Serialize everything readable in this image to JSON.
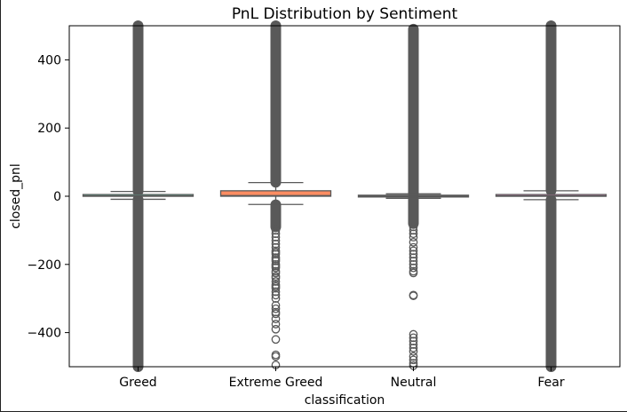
{
  "chart_data": {
    "type": "box",
    "title": "PnL Distribution by Sentiment",
    "xlabel": "classification",
    "ylabel": "closed_pnl",
    "ylim": [
      -500,
      500
    ],
    "yticks": [
      -400,
      -200,
      0,
      200,
      400
    ],
    "ytick_labels": [
      "−400",
      "−200",
      "0",
      "200",
      "400"
    ],
    "grid": false,
    "legend": "none",
    "categories": [
      "Greed",
      "Extreme Greed",
      "Neutral",
      "Fear"
    ],
    "boxes": [
      {
        "name": "Greed",
        "color": "#66c2a5",
        "q1": 0,
        "median": 1,
        "q3": 5,
        "whisker_low": -9,
        "whisker_high": 14,
        "outliers_dense": [
          [
            -500,
            -10
          ],
          [
            15,
            500
          ]
        ],
        "outliers_sparse": []
      },
      {
        "name": "Extreme Greed",
        "color": "#fc8d62",
        "q1": 0,
        "median": 2,
        "q3": 16,
        "whisker_low": -24,
        "whisker_high": 40,
        "outliers_dense": [
          [
            -90,
            -25
          ],
          [
            41,
            500
          ]
        ],
        "outliers_sparse": [
          -100,
          -110,
          -120,
          -130,
          -140,
          -150,
          -160,
          -165,
          -170,
          -180,
          -185,
          -190,
          -200,
          -205,
          -210,
          -220,
          -225,
          -235,
          -240,
          -250,
          -260,
          -265,
          -270,
          -280,
          -290,
          -300,
          -320,
          -330,
          -340,
          -345,
          -360,
          -375,
          -390,
          -420,
          -465,
          -470,
          -495
        ]
      },
      {
        "name": "Neutral",
        "color": "#8da0cb",
        "q1": -1,
        "median": 0,
        "q3": 3,
        "whisker_low": -6,
        "whisker_high": 7,
        "outliers_dense": [
          [
            -80,
            -7
          ],
          [
            8,
            490
          ]
        ],
        "outliers_sparse": [
          -90,
          -100,
          -110,
          -120,
          -135,
          -150,
          -160,
          -170,
          -180,
          -190,
          -200,
          -210,
          -220,
          -225,
          -290,
          -292,
          -405,
          -415,
          -425,
          -435,
          -445,
          -455,
          -470,
          -480,
          -490,
          -497
        ]
      },
      {
        "name": "Fear",
        "color": "#e78ac3",
        "q1": 0,
        "median": 1,
        "q3": 5,
        "whisker_low": -10,
        "whisker_high": 16,
        "outliers_dense": [
          [
            -500,
            -11
          ],
          [
            17,
            500
          ]
        ],
        "outliers_sparse": []
      }
    ]
  }
}
